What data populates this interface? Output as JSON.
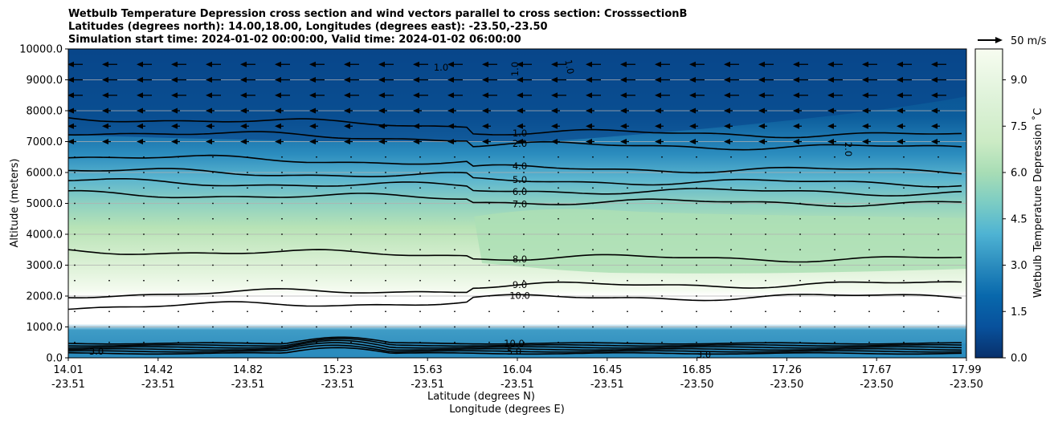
{
  "chart_data": {
    "type": "heatmap",
    "title_lines": [
      "Wetbulb Temperature Depression cross section and wind vectors parallel to cross section: CrosssectionB",
      "Latitudes (degrees north): 14.00,18.00, Longitudes (degrees east): -23.50,-23.50",
      "Simulation start time: 2024-01-02 00:00:00, Valid time: 2024-01-02 06:00:00"
    ],
    "ylabel": "Altitude (meters)",
    "xlabel_lat": "Latitude (degrees N)",
    "xlabel_lon": "Longitude (degrees E)",
    "ylim": [
      0,
      10000
    ],
    "yticks": [
      "0.0",
      "1000.0",
      "2000.0",
      "3000.0",
      "4000.0",
      "5000.0",
      "6000.0",
      "7000.0",
      "8000.0",
      "9000.0",
      "10000.0"
    ],
    "xticks": [
      {
        "lat": "14.01",
        "lon": "-23.51"
      },
      {
        "lat": "14.42",
        "lon": "-23.51"
      },
      {
        "lat": "14.82",
        "lon": "-23.51"
      },
      {
        "lat": "15.23",
        "lon": "-23.51"
      },
      {
        "lat": "15.63",
        "lon": "-23.51"
      },
      {
        "lat": "16.04",
        "lon": "-23.51"
      },
      {
        "lat": "16.45",
        "lon": "-23.51"
      },
      {
        "lat": "16.85",
        "lon": "-23.50"
      },
      {
        "lat": "17.26",
        "lon": "-23.50"
      },
      {
        "lat": "17.67",
        "lon": "-23.50"
      },
      {
        "lat": "17.99",
        "lon": "-23.50"
      }
    ],
    "colorbar": {
      "label": "Wetbulb Temperature Depression ˚C",
      "range": [
        0,
        10
      ],
      "ticks": [
        "0.0",
        "1.5",
        "3.0",
        "4.5",
        "6.0",
        "7.5",
        "9.0"
      ]
    },
    "quiver_key": "50 m/s",
    "grid": "horizontal",
    "contour_levels": [
      {
        "level": 1.0,
        "label": "1.0",
        "alt_m": 7200
      },
      {
        "level": 2.0,
        "label": "2.0",
        "alt_m": 6800
      },
      {
        "level": 4.0,
        "label": "4.0",
        "alt_m": 6050
      },
      {
        "level": 5.0,
        "label": "5.0",
        "alt_m": 5650
      },
      {
        "level": 6.0,
        "label": "6.0",
        "alt_m": 5350
      },
      {
        "level": 7.0,
        "label": "7.0",
        "alt_m": 5000
      },
      {
        "level": 8.0,
        "label": "8.0",
        "alt_m": 3200
      },
      {
        "level": 9.0,
        "label": "9.0",
        "alt_m": 2400
      },
      {
        "level": 10.0,
        "label": "10.0",
        "alt_m": 2000
      }
    ],
    "surface_labels": [
      "10.0",
      "5.0",
      "3.0",
      "3.0"
    ],
    "upper_labels": [
      "1.0",
      "1.0",
      "1.0",
      "2.0"
    ]
  }
}
